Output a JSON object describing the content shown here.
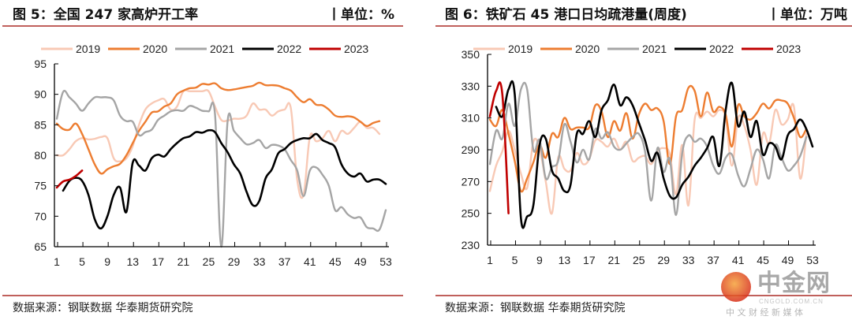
{
  "chart_data": [
    {
      "type": "line",
      "title": "图 5：全国 247 家高炉开工率",
      "unit": "丨单位：%",
      "source": "数据来源：钢联数据  华泰期货研究院",
      "xlabel": "",
      "ylabel": "",
      "x_ticks": [
        1,
        5,
        9,
        13,
        17,
        21,
        25,
        29,
        33,
        37,
        41,
        45,
        49,
        53
      ],
      "y_ticks": [
        65,
        70,
        75,
        80,
        85,
        90,
        95
      ],
      "ylim": [
        65,
        95
      ],
      "xlim": [
        1,
        53
      ],
      "legend_position": "top",
      "grid": false,
      "series": [
        {
          "name": "2019",
          "color": "#f8c9b5",
          "start": 1,
          "values": [
            80,
            80,
            81,
            82.3,
            82.8,
            82.6,
            82.7,
            83,
            82.8,
            79.5,
            79,
            79.5,
            81.5,
            85,
            87.5,
            88.5,
            89,
            89.2,
            87.5,
            88,
            90.5,
            90.5,
            90.5,
            90.5,
            90.5,
            88,
            85.8,
            85.7,
            86,
            86,
            86.5,
            88.5,
            87.5,
            87.5,
            86.5,
            87.2,
            87.5,
            87.7,
            76,
            73.5,
            83,
            82.3,
            82.8,
            84,
            82.3,
            84,
            83.5,
            84.5,
            85.5,
            84.5,
            84.5,
            83.5
          ]
        },
        {
          "name": "2020",
          "color": "#ed7d31",
          "start": 1,
          "values": [
            85.2,
            84.3,
            84.2,
            85.2,
            83.5,
            81,
            78.5,
            77,
            77.7,
            78.2,
            78.6,
            80,
            82,
            84,
            85.5,
            87,
            87.2,
            88,
            88.5,
            90,
            90.6,
            91,
            91.1,
            91.7,
            91.6,
            91.8,
            91,
            90.7,
            90.8,
            91,
            91.2,
            91.4,
            91.9,
            91.5,
            91.5,
            91.4,
            91,
            90.6,
            89.5,
            88.7,
            89.2,
            88.3,
            88.2,
            87.5,
            86.5,
            86.3,
            86.4,
            86.2,
            85.5,
            84.8,
            85.3,
            85.6
          ]
        },
        {
          "name": "2021",
          "color": "#a5a5a5",
          "start": 1,
          "values": [
            86,
            90.4,
            89.5,
            88.5,
            87.3,
            88.5,
            89.5,
            89.5,
            89.5,
            89,
            86.5,
            85.6,
            85.5,
            83.3,
            83.8,
            84.2,
            85.8,
            86.5,
            87.2,
            87.4,
            87.3,
            88.1,
            87.8,
            87.3,
            87.2,
            86.8,
            65,
            85.6,
            84,
            82.8,
            81.8,
            82,
            82.5,
            81.2,
            81.7,
            81.6,
            81,
            79.2,
            77.5,
            73.3,
            77.5,
            78,
            76.8,
            75,
            71,
            71.5,
            70.3,
            69.7,
            69.8,
            68.2,
            68,
            67.8,
            71
          ]
        },
        {
          "name": "2022",
          "color": "#000000",
          "start": 2,
          "values": [
            74.2,
            75.8,
            76.3,
            75.8,
            73.5,
            69.5,
            68,
            70,
            73.5,
            74.7,
            70.7,
            78.8,
            78.3,
            77.5,
            79.5,
            80.1,
            79.8,
            81,
            82,
            82.8,
            83.1,
            83.8,
            83.7,
            84.1,
            83.8,
            82,
            80.5,
            78.5,
            77,
            74,
            71.8,
            72.5,
            76.2,
            77.7,
            80.3,
            81,
            82,
            82.5,
            82.8,
            82.8,
            83.5,
            82.5,
            82,
            81.3,
            78.5,
            77,
            76.5,
            77,
            75.7,
            76,
            76,
            75.3
          ]
        },
        {
          "name": "2023",
          "color": "#c00000",
          "start": 1,
          "values": [
            74.7,
            75.7,
            76,
            76.6,
            77.5
          ]
        }
      ]
    },
    {
      "type": "line",
      "title": "图 6：铁矿石 45 港口日均疏港量(周度)",
      "unit": "丨单位：万吨",
      "source": "数据来源：钢联数据  华泰期货研究院",
      "xlabel": "",
      "ylabel": "",
      "x_ticks": [
        1,
        5,
        9,
        13,
        17,
        21,
        25,
        29,
        33,
        37,
        41,
        45,
        49,
        53
      ],
      "y_ticks": [
        230,
        250,
        270,
        290,
        310,
        330,
        350
      ],
      "ylim": [
        230,
        350
      ],
      "xlim": [
        1,
        53
      ],
      "legend_position": "top",
      "grid": false,
      "series": [
        {
          "name": "2019",
          "color": "#f8c9b5",
          "start": 1,
          "values": [
            264,
            280,
            289,
            302,
            290,
            275,
            266,
            295,
            291,
            270,
            250,
            285,
            278,
            277,
            288,
            281,
            284,
            296,
            295,
            292,
            297,
            290,
            295,
            283,
            285,
            286,
            281,
            289,
            291,
            287,
            262,
            293,
            255,
            309,
            310,
            314,
            311,
            315,
            310,
            280,
            310,
            305,
            290,
            268,
            300,
            294,
            315,
            306,
            309,
            317,
            272,
            300
          ]
        },
        {
          "name": "2020",
          "color": "#ed7d31",
          "start": 1,
          "values": [
            309,
            305,
            315,
            300,
            283,
            264,
            272,
            282,
            293,
            285,
            300,
            298,
            310,
            303,
            304,
            304,
            304,
            318,
            314,
            298,
            308,
            302,
            313,
            297,
            312,
            319,
            315,
            316,
            308,
            281,
            311,
            315,
            329,
            327,
            311,
            326,
            314,
            317,
            312,
            292,
            318,
            311,
            309,
            313,
            319,
            316,
            321,
            321,
            319,
            310,
            298,
            303
          ]
        },
        {
          "name": "2021",
          "color": "#a5a5a5",
          "start": 1,
          "values": [
            281,
            302,
            297,
            319,
            305,
            328,
            328,
            290,
            296,
            272,
            279,
            283,
            306,
            295,
            282,
            290,
            284,
            303,
            297,
            301,
            292,
            290,
            294,
            298,
            300,
            289,
            258,
            291,
            276,
            284,
            249,
            288,
            299,
            295,
            297,
            292,
            280,
            275,
            285,
            287,
            274,
            267,
            278,
            290,
            284,
            272,
            293,
            285,
            277,
            280,
            286,
            298
          ]
        },
        {
          "name": "2022",
          "color": "#000000",
          "start": 2,
          "values": [
            317,
            311,
            328,
            325,
            247,
            248,
            255,
            293,
            297,
            277,
            272,
            264,
            268,
            300,
            300,
            308,
            298,
            315,
            321,
            331,
            318,
            323,
            318,
            307,
            296,
            283,
            288,
            272,
            261,
            260,
            268,
            273,
            280,
            285,
            291,
            298,
            280,
            315,
            332,
            305,
            314,
            298,
            308,
            287,
            294,
            292,
            284,
            299,
            303,
            309,
            303,
            292
          ]
        },
        {
          "name": "2023",
          "color": "#c00000",
          "start": 1,
          "values": [
            311,
            327,
            325,
            250
          ]
        }
      ]
    }
  ],
  "watermark": {
    "logo_text": "中金网",
    "domain": "CNGOLD.COM.CN",
    "tagline": "中 文 财 经 新 媒 体"
  }
}
